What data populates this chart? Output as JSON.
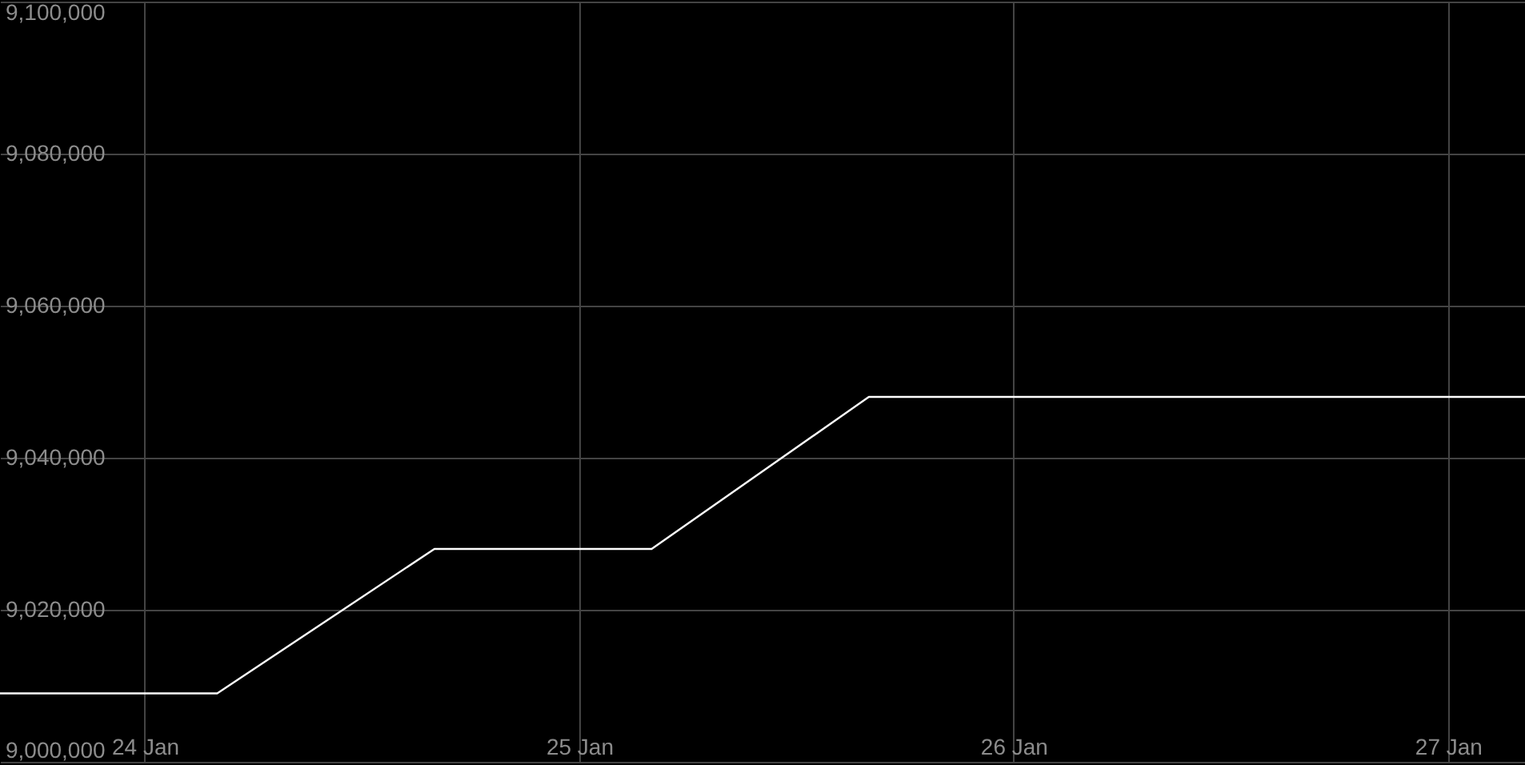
{
  "chart_data": {
    "type": "line",
    "x": [
      "--01-23T16:00",
      "--01-24T04:00",
      "--01-24T16:00",
      "--01-25T04:00",
      "--01-25T16:00",
      "--01-27T04:15"
    ],
    "series": [
      {
        "color": "#ffffff",
        "values": [
          9009000,
          9009000,
          9028000,
          9028000,
          9048000,
          9048000
        ]
      }
    ],
    "xlim": [
      "--01-23T16:00",
      "--01-27T04:15"
    ],
    "xticks": [
      {
        "value": "--01-24",
        "label": "24 Jan"
      },
      {
        "value": "--01-25",
        "label": "25 Jan"
      },
      {
        "value": "--01-26",
        "label": "26 Jan"
      },
      {
        "value": "--01-27",
        "label": "27 Jan"
      }
    ],
    "ylim": [
      9000000,
      9100000
    ],
    "yticks": [
      {
        "value": 9000000,
        "label": "9,000,000"
      },
      {
        "value": 9020000,
        "label": "9,020,000"
      },
      {
        "value": 9040000,
        "label": "9,040,000"
      },
      {
        "value": 9060000,
        "label": "9,060,000"
      },
      {
        "value": 9080000,
        "label": "9,080,000"
      },
      {
        "value": 9100000,
        "label": "9,100,000"
      }
    ],
    "grid": true
  }
}
